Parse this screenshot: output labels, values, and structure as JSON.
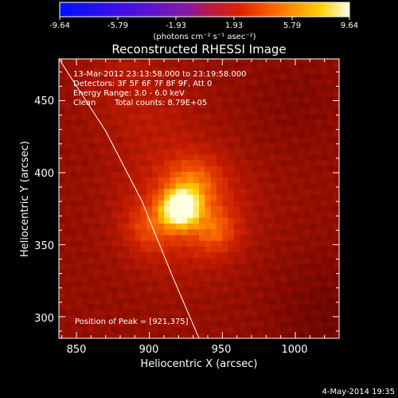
{
  "colorbar": {
    "ticks": [
      "-9.64",
      "-5.79",
      "-1.93",
      "1.93",
      "5.79",
      "9.64"
    ],
    "unit_label": "(photons cm⁻² s⁻¹ asec⁻²)",
    "range": [
      -9.64,
      9.64
    ]
  },
  "chart_data": {
    "type": "heatmap",
    "title": "Reconstructed RHESSI Image",
    "xlabel": "Heliocentric X (arcsec)",
    "ylabel": "Heliocentric Y (arcsec)",
    "xlim": [
      838,
      1030
    ],
    "ylim": [
      285,
      479
    ],
    "x_ticks": [
      850,
      900,
      950,
      1000
    ],
    "y_ticks": [
      300,
      350,
      400,
      450
    ],
    "peak": {
      "x": 921,
      "y": 375,
      "value": 9.64
    },
    "annotations": {
      "time": "13-Mar-2012 23:13:58.000 to 23:19:58.000",
      "detectors": "Detectors: 3F 5F 6F 7F 8F 9F, Att 0",
      "energy": "Energy Range: 3.0 - 6.0 keV",
      "clean_label": "Clean",
      "counts": "Total counts: 8.79E+05",
      "peak_position": "Position of Peak = [921,375]"
    },
    "limb_points": [
      [
        838,
        479
      ],
      [
        870,
        429
      ],
      [
        895,
        380
      ],
      [
        915,
        330
      ],
      [
        934,
        285
      ]
    ]
  },
  "footer": {
    "date": "4-May-2014 19:35"
  }
}
